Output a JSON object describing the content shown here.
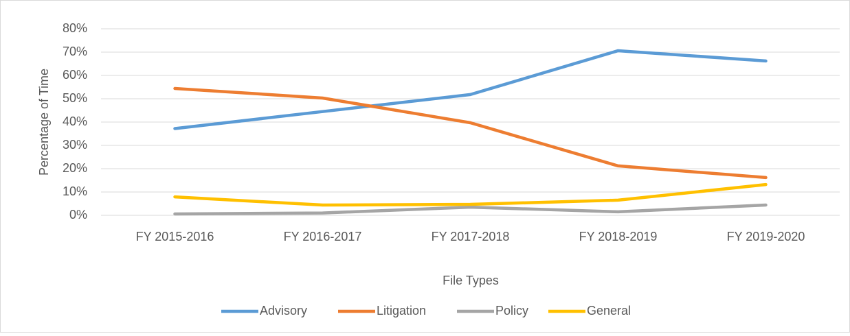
{
  "chart_data": {
    "type": "line",
    "x_label": "File Types",
    "y_label": "Percentage of Time",
    "categories": [
      "FY 2015-2016",
      "FY 2016-2017",
      "FY 2017-2018",
      "FY 2018-2019",
      "FY 2019-2020"
    ],
    "series": [
      {
        "name": "Advisory",
        "color": "#5b9bd5",
        "values": [
          37.2,
          44.5,
          51.8,
          70.6,
          66.2
        ]
      },
      {
        "name": "Litigation",
        "color": "#ed7d31",
        "values": [
          54.4,
          50.3,
          39.7,
          21.2,
          16.2
        ]
      },
      {
        "name": "Policy",
        "color": "#a5a5a5",
        "values": [
          0.6,
          1.0,
          3.5,
          1.5,
          4.4
        ]
      },
      {
        "name": "General",
        "color": "#ffc000",
        "values": [
          7.9,
          4.4,
          4.7,
          6.5,
          13.2
        ]
      }
    ],
    "ylim": [
      0,
      80
    ],
    "yticks": [
      {
        "value": 0,
        "label": "0%"
      },
      {
        "value": 10,
        "label": "10%"
      },
      {
        "value": 20,
        "label": "20%"
      },
      {
        "value": 30,
        "label": "30%"
      },
      {
        "value": 40,
        "label": "40%"
      },
      {
        "value": 50,
        "label": "50%"
      },
      {
        "value": 60,
        "label": "60%"
      },
      {
        "value": 70,
        "label": "70%"
      },
      {
        "value": 80,
        "label": "80%"
      }
    ],
    "grid": true,
    "legend": "bottom"
  }
}
